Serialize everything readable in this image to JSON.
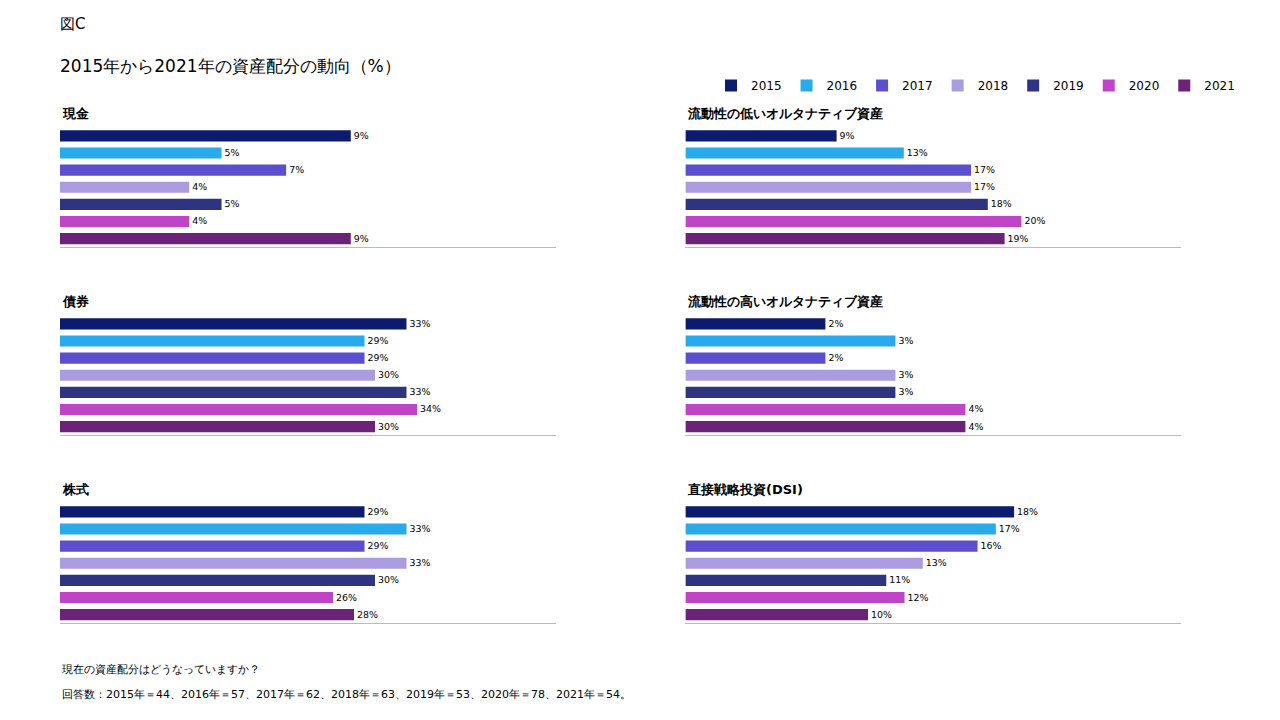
{
  "title": "図C",
  "subtitle": "2015年から2021年の資産配分の動向（%）",
  "annotations": [
    "現在の資産配分はどうなっていますか？",
    "回答数：2015年＝44、2016年＝57、2017年＝62、2018年＝63、2019年＝53、2020年＝78、2021年＝54。"
  ],
  "legend": "top",
  "chart_data": [
    {
      "type": "bar",
      "orientation": "horizontal",
      "title": "現金",
      "categories": [
        "2015",
        "2016",
        "2017",
        "2018",
        "2019",
        "2020",
        "2021"
      ],
      "values": [
        9,
        5,
        7,
        4,
        5,
        4,
        9
      ],
      "value_labels": [
        "9%",
        "5%",
        "7%",
        "4%",
        "5%",
        "4%",
        "9%"
      ],
      "colors": [
        "#0d1b6e",
        "#29aaeb",
        "#5b4fcf",
        "#a99de0",
        "#2d3580",
        "#c044c8",
        "#6b2278"
      ],
      "data_labels": true,
      "tick_labels": false,
      "xlim": [
        0,
        15.34
      ]
    },
    {
      "type": "bar",
      "orientation": "horizontal",
      "title": "債券",
      "categories": [
        "2015",
        "2016",
        "2017",
        "2018",
        "2019",
        "2020",
        "2021"
      ],
      "values": [
        33,
        29,
        29,
        30,
        33,
        34,
        30
      ],
      "value_labels": [
        "33%",
        "29%",
        "29%",
        "30%",
        "33%",
        "34%",
        "30%"
      ],
      "colors": [
        "#0d1b6e",
        "#29aaeb",
        "#5b4fcf",
        "#a99de0",
        "#2d3580",
        "#c044c8",
        "#6b2278"
      ],
      "data_labels": true,
      "tick_labels": false,
      "xlim": [
        0,
        47.2
      ]
    },
    {
      "type": "bar",
      "orientation": "horizontal",
      "title": "株式",
      "categories": [
        "2015",
        "2016",
        "2017",
        "2018",
        "2019",
        "2020",
        "2021"
      ],
      "values": [
        29,
        33,
        29,
        33,
        30,
        26,
        28
      ],
      "value_labels": [
        "29%",
        "33%",
        "29%",
        "33%",
        "30%",
        "26%",
        "28%"
      ],
      "colors": [
        "#0d1b6e",
        "#29aaeb",
        "#5b4fcf",
        "#a99de0",
        "#2d3580",
        "#c044c8",
        "#6b2278"
      ],
      "data_labels": true,
      "tick_labels": false,
      "xlim": [
        0,
        47.2
      ]
    },
    {
      "type": "bar",
      "orientation": "horizontal",
      "title": "流動性の低いオルタナティブ資産",
      "categories": [
        "2015",
        "2016",
        "2017",
        "2018",
        "2019",
        "2020",
        "2021"
      ],
      "values": [
        9,
        13,
        17,
        17,
        18,
        20,
        19
      ],
      "value_labels": [
        "9%",
        "13%",
        "17%",
        "17%",
        "18%",
        "20%",
        "19%"
      ],
      "colors": [
        "#0d1b6e",
        "#29aaeb",
        "#5b4fcf",
        "#a99de0",
        "#2d3580",
        "#c044c8",
        "#6b2278"
      ],
      "data_labels": true,
      "tick_labels": false,
      "xlim": [
        0,
        29.5
      ]
    },
    {
      "type": "bar",
      "orientation": "horizontal",
      "title": "流動性の高いオルタナティブ資産",
      "categories": [
        "2015",
        "2016",
        "2017",
        "2018",
        "2019",
        "2020",
        "2021"
      ],
      "values": [
        2,
        3,
        2,
        3,
        3,
        4,
        4
      ],
      "value_labels": [
        "2%",
        "3%",
        "2%",
        "3%",
        "3%",
        "4%",
        "4%"
      ],
      "colors": [
        "#0d1b6e",
        "#29aaeb",
        "#5b4fcf",
        "#a99de0",
        "#2d3580",
        "#c044c8",
        "#6b2278"
      ],
      "data_labels": true,
      "tick_labels": false,
      "xlim": [
        0,
        7.08
      ]
    },
    {
      "type": "bar",
      "orientation": "horizontal",
      "title": "直接戦略投資(DSI)",
      "categories": [
        "2015",
        "2016",
        "2017",
        "2018",
        "2019",
        "2020",
        "2021"
      ],
      "values": [
        18,
        17,
        16,
        13,
        11,
        12,
        10
      ],
      "value_labels": [
        "18%",
        "17%",
        "16%",
        "13%",
        "11%",
        "12%",
        "10%"
      ],
      "colors": [
        "#0d1b6e",
        "#29aaeb",
        "#5b4fcf",
        "#a99de0",
        "#2d3580",
        "#c044c8",
        "#6b2278"
      ],
      "data_labels": true,
      "tick_labels": false,
      "xlim": [
        0,
        27.14
      ]
    }
  ]
}
